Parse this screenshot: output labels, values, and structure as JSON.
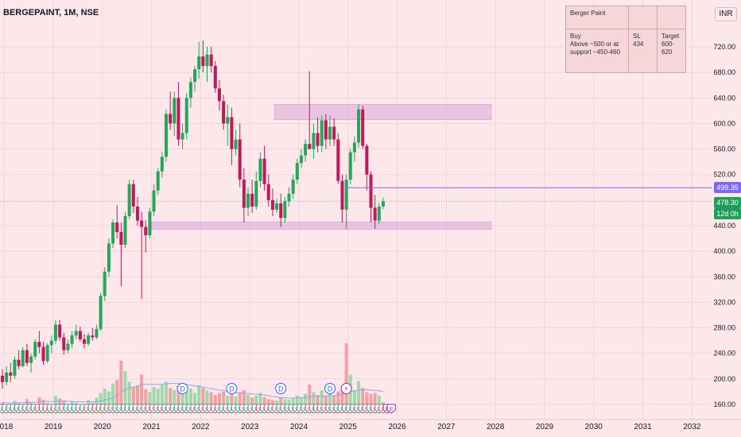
{
  "header": {
    "title": "BERGEPAINT, 1M, NSE"
  },
  "currency": "INR",
  "note_table": {
    "title": "Berger Paint",
    "buy": "Buy\nAbove ~500 or at support ~450-460",
    "sl_label": "SL",
    "sl_value": "434",
    "target_label": "Target",
    "target_value": "600-620"
  },
  "price_tags": {
    "resistance": "499.35",
    "last": "478.30",
    "countdown": "12d 0h"
  },
  "colors": {
    "up": "#26a65b",
    "down": "#c2185b",
    "zone": "#d8a7d9",
    "line": "#7b68ee",
    "background": "#fce8ea"
  },
  "chart_data": {
    "type": "candlestick",
    "ylim": [
      140,
      760
    ],
    "y_ticks": [
      "160.00",
      "200.00",
      "240.00",
      "280.00",
      "320.00",
      "360.00",
      "400.00",
      "440.00",
      "520.00",
      "560.00",
      "600.00",
      "640.00",
      "680.00",
      "720.00"
    ],
    "x_ticks": [
      "2018",
      "2019",
      "2020",
      "2021",
      "2022",
      "2023",
      "2024",
      "2025",
      "2026",
      "2027",
      "2028",
      "2029",
      "2030",
      "2031",
      "2032"
    ],
    "x_start": "2017-12",
    "candles": [
      [
        205,
        215,
        185,
        195
      ],
      [
        195,
        220,
        190,
        210
      ],
      [
        210,
        225,
        195,
        205
      ],
      [
        205,
        235,
        200,
        230
      ],
      [
        230,
        245,
        215,
        220
      ],
      [
        220,
        250,
        218,
        245
      ],
      [
        245,
        255,
        220,
        225
      ],
      [
        225,
        240,
        210,
        235
      ],
      [
        235,
        262,
        230,
        258
      ],
      [
        258,
        275,
        240,
        250
      ],
      [
        250,
        258,
        222,
        228
      ],
      [
        228,
        256,
        225,
        253
      ],
      [
        253,
        268,
        240,
        260
      ],
      [
        260,
        292,
        255,
        285
      ],
      [
        285,
        292,
        260,
        265
      ],
      [
        265,
        272,
        238,
        245
      ],
      [
        245,
        262,
        240,
        255
      ],
      [
        255,
        275,
        248,
        268
      ],
      [
        268,
        285,
        262,
        275
      ],
      [
        275,
        282,
        258,
        262
      ],
      [
        262,
        270,
        248,
        255
      ],
      [
        255,
        272,
        252,
        268
      ],
      [
        268,
        280,
        260,
        265
      ],
      [
        265,
        285,
        262,
        278
      ],
      [
        278,
        335,
        275,
        330
      ],
      [
        330,
        375,
        322,
        368
      ],
      [
        368,
        420,
        360,
        412
      ],
      [
        412,
        450,
        405,
        445
      ],
      [
        445,
        472,
        420,
        430
      ],
      [
        430,
        445,
        345,
        410
      ],
      [
        410,
        462,
        405,
        455
      ],
      [
        455,
        512,
        450,
        505
      ],
      [
        505,
        512,
        460,
        470
      ],
      [
        470,
        485,
        440,
        448
      ],
      [
        448,
        462,
        325,
        438
      ],
      [
        438,
        448,
        398,
        425
      ],
      [
        425,
        468,
        420,
        462
      ],
      [
        462,
        505,
        455,
        495
      ],
      [
        495,
        530,
        488,
        525
      ],
      [
        525,
        555,
        515,
        548
      ],
      [
        548,
        622,
        540,
        615
      ],
      [
        615,
        650,
        590,
        600
      ],
      [
        600,
        650,
        580,
        640
      ],
      [
        640,
        665,
        565,
        575
      ],
      [
        575,
        600,
        560,
        585
      ],
      [
        585,
        648,
        575,
        640
      ],
      [
        640,
        672,
        625,
        665
      ],
      [
        665,
        690,
        650,
        685
      ],
      [
        685,
        728,
        670,
        705
      ],
      [
        705,
        730,
        680,
        690
      ],
      [
        690,
        720,
        665,
        708
      ],
      [
        708,
        720,
        680,
        690
      ],
      [
        690,
        698,
        648,
        655
      ],
      [
        655,
        668,
        620,
        635
      ],
      [
        635,
        645,
        590,
        600
      ],
      [
        600,
        630,
        565,
        610
      ],
      [
        610,
        625,
        535,
        560
      ],
      [
        560,
        590,
        550,
        575
      ],
      [
        575,
        600,
        500,
        512
      ],
      [
        512,
        530,
        445,
        468
      ],
      [
        468,
        500,
        455,
        490
      ],
      [
        490,
        512,
        460,
        470
      ],
      [
        470,
        525,
        465,
        510
      ],
      [
        510,
        555,
        500,
        545
      ],
      [
        545,
        565,
        495,
        505
      ],
      [
        505,
        520,
        470,
        480
      ],
      [
        480,
        498,
        455,
        465
      ],
      [
        465,
        482,
        460,
        475
      ],
      [
        475,
        490,
        438,
        452
      ],
      [
        452,
        485,
        445,
        478
      ],
      [
        478,
        500,
        470,
        490
      ],
      [
        490,
        520,
        482,
        512
      ],
      [
        512,
        545,
        505,
        538
      ],
      [
        538,
        560,
        530,
        550
      ],
      [
        550,
        575,
        540,
        568
      ],
      [
        568,
        682,
        560,
        560
      ],
      [
        560,
        600,
        545,
        585
      ],
      [
        585,
        610,
        555,
        565
      ],
      [
        565,
        612,
        555,
        605
      ],
      [
        605,
        615,
        560,
        575
      ],
      [
        575,
        612,
        565,
        595
      ],
      [
        595,
        608,
        565,
        575
      ],
      [
        575,
        585,
        505,
        510
      ],
      [
        510,
        520,
        445,
        465
      ],
      [
        465,
        520,
        435,
        512
      ],
      [
        512,
        560,
        505,
        555
      ],
      [
        555,
        580,
        540,
        570
      ],
      [
        570,
        630,
        562,
        622
      ],
      [
        622,
        628,
        560,
        565
      ],
      [
        565,
        568,
        495,
        520
      ],
      [
        520,
        525,
        445,
        468
      ],
      [
        468,
        488,
        435,
        448
      ],
      [
        448,
        475,
        442,
        470
      ],
      [
        470,
        484,
        466,
        478
      ]
    ],
    "volume": [
      [
        30,
        "down"
      ],
      [
        25,
        "up"
      ],
      [
        20,
        "down"
      ],
      [
        35,
        "up"
      ],
      [
        28,
        "down"
      ],
      [
        22,
        "up"
      ],
      [
        40,
        "down"
      ],
      [
        32,
        "up"
      ],
      [
        26,
        "up"
      ],
      [
        45,
        "down"
      ],
      [
        38,
        "down"
      ],
      [
        30,
        "up"
      ],
      [
        24,
        "up"
      ],
      [
        50,
        "up"
      ],
      [
        42,
        "down"
      ],
      [
        36,
        "down"
      ],
      [
        28,
        "up"
      ],
      [
        33,
        "up"
      ],
      [
        30,
        "up"
      ],
      [
        26,
        "down"
      ],
      [
        22,
        "down"
      ],
      [
        38,
        "up"
      ],
      [
        30,
        "down"
      ],
      [
        44,
        "up"
      ],
      [
        58,
        "up"
      ],
      [
        70,
        "up"
      ],
      [
        62,
        "up"
      ],
      [
        85,
        "up"
      ],
      [
        95,
        "down"
      ],
      [
        150,
        "down"
      ],
      [
        120,
        "up"
      ],
      [
        90,
        "up"
      ],
      [
        75,
        "down"
      ],
      [
        80,
        "down"
      ],
      [
        110,
        "down"
      ],
      [
        68,
        "down"
      ],
      [
        60,
        "up"
      ],
      [
        75,
        "up"
      ],
      [
        70,
        "up"
      ],
      [
        82,
        "up"
      ],
      [
        90,
        "up"
      ],
      [
        72,
        "down"
      ],
      [
        66,
        "up"
      ],
      [
        78,
        "down"
      ],
      [
        55,
        "up"
      ],
      [
        62,
        "up"
      ],
      [
        70,
        "up"
      ],
      [
        58,
        "up"
      ],
      [
        80,
        "up"
      ],
      [
        72,
        "down"
      ],
      [
        65,
        "up"
      ],
      [
        60,
        "down"
      ],
      [
        52,
        "down"
      ],
      [
        58,
        "down"
      ],
      [
        62,
        "down"
      ],
      [
        50,
        "up"
      ],
      [
        55,
        "down"
      ],
      [
        48,
        "up"
      ],
      [
        60,
        "down"
      ],
      [
        66,
        "down"
      ],
      [
        52,
        "up"
      ],
      [
        45,
        "down"
      ],
      [
        50,
        "up"
      ],
      [
        58,
        "up"
      ],
      [
        46,
        "down"
      ],
      [
        40,
        "down"
      ],
      [
        38,
        "down"
      ],
      [
        36,
        "up"
      ],
      [
        44,
        "down"
      ],
      [
        40,
        "up"
      ],
      [
        38,
        "up"
      ],
      [
        42,
        "up"
      ],
      [
        50,
        "up"
      ],
      [
        46,
        "up"
      ],
      [
        55,
        "up"
      ],
      [
        82,
        "down"
      ],
      [
        60,
        "up"
      ],
      [
        52,
        "down"
      ],
      [
        65,
        "up"
      ],
      [
        48,
        "down"
      ],
      [
        58,
        "up"
      ],
      [
        50,
        "down"
      ],
      [
        62,
        "down"
      ],
      [
        68,
        "down"
      ],
      [
        200,
        "down"
      ],
      [
        110,
        "up"
      ],
      [
        66,
        "up"
      ],
      [
        92,
        "up"
      ],
      [
        72,
        "down"
      ],
      [
        60,
        "down"
      ],
      [
        55,
        "down"
      ],
      [
        58,
        "down"
      ],
      [
        50,
        "up"
      ],
      [
        32,
        "up"
      ]
    ],
    "vol_ma": [
      30,
      30,
      29,
      30,
      30,
      30,
      31,
      31,
      31,
      33,
      34,
      34,
      33,
      34,
      35,
      35,
      34,
      34,
      33,
      33,
      32,
      33,
      32,
      33,
      35,
      38,
      40,
      44,
      50,
      60,
      68,
      72,
      74,
      77,
      82,
      83,
      82,
      82,
      82,
      83,
      84,
      85,
      85,
      85,
      84,
      82,
      80,
      78,
      76,
      75,
      72,
      70,
      68,
      66,
      65,
      62,
      60,
      58,
      58,
      57,
      56,
      55,
      54,
      53,
      52,
      50,
      48,
      46,
      45,
      44,
      43,
      43,
      44,
      44,
      45,
      47,
      48,
      48,
      49,
      49,
      50,
      50,
      52,
      54,
      60,
      63,
      63,
      66,
      67,
      67,
      66,
      65,
      64,
      62
    ],
    "zones": [
      {
        "from": "2023-07",
        "to": "2027-12",
        "y0": 606,
        "y1": 630
      },
      {
        "from": "2021-01",
        "to": "2027-12",
        "y0": 434,
        "y1": 446
      }
    ],
    "resistance": {
      "from": "2024-12",
      "value": 499.35
    },
    "last_price": 478.3,
    "event_markers": {
      "earnings": "E",
      "dividend": "D",
      "dividend_months": [
        "2021-08",
        "2022-08",
        "2023-08",
        "2024-08"
      ],
      "split_month": "2024-12"
    }
  }
}
